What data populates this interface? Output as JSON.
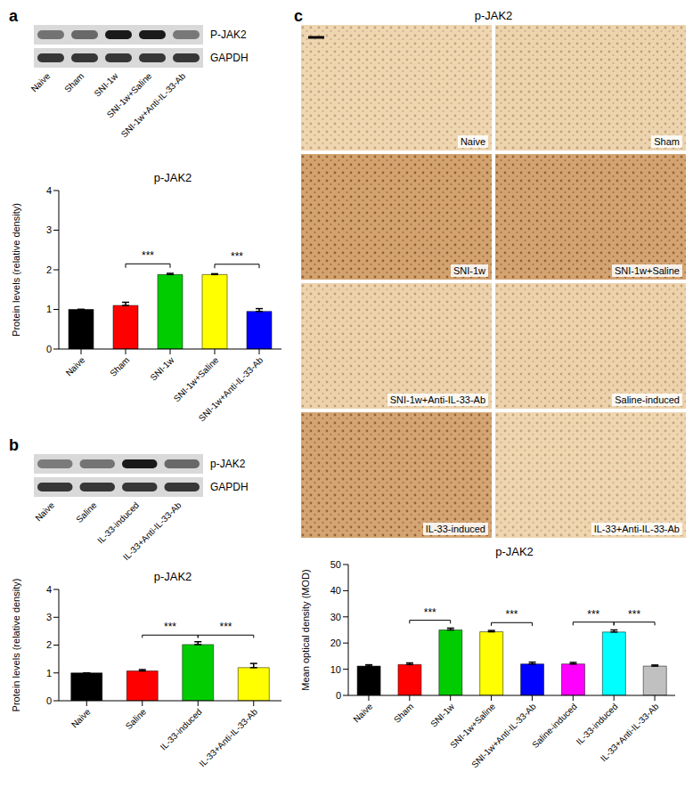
{
  "chart_data": [
    {
      "panel": "a",
      "type": "bar",
      "title": "p-JAK2",
      "blot": {
        "rows": [
          "P-JAK2",
          "GAPDH"
        ]
      },
      "y_label": "Protein levels (relative density)",
      "categories": [
        "Naive",
        "Sham",
        "SNI-1w",
        "SNI-1w+Saline",
        "SNI-1w+Anti-IL-33-Ab"
      ],
      "values": [
        1.0,
        1.1,
        1.88,
        1.88,
        0.95
      ],
      "errors": [
        0,
        0.08,
        0.03,
        0.02,
        0.07
      ],
      "colors": [
        "#000000",
        "#ff0000",
        "#00cc00",
        "#ffff00",
        "#0000ff"
      ],
      "ylim": [
        0,
        4
      ],
      "yticks": [
        0,
        1,
        2,
        3,
        4
      ],
      "grid": false,
      "annotations": [
        {
          "between": [
            "Sham",
            "SNI-1w"
          ],
          "text": "***"
        },
        {
          "between": [
            "SNI-1w+Saline",
            "SNI-1w+Anti-IL-33-Ab"
          ],
          "text": "***"
        }
      ]
    },
    {
      "panel": "b",
      "type": "bar",
      "title": "p-JAK2",
      "blot": {
        "rows": [
          "p-JAK2",
          "GAPDH"
        ]
      },
      "y_label": "Protein levels (relative density)",
      "categories": [
        "Naive",
        "Saline",
        "IL-33-induced",
        "IL-33+Anti-IL-33-Ab"
      ],
      "values": [
        1.0,
        1.07,
        2.02,
        1.19
      ],
      "errors": [
        0,
        0.05,
        0.1,
        0.15
      ],
      "colors": [
        "#000000",
        "#ff0000",
        "#00cc00",
        "#ffff00"
      ],
      "ylim": [
        0,
        4
      ],
      "yticks": [
        0,
        1,
        2,
        3,
        4
      ],
      "grid": false,
      "annotations": [
        {
          "between": [
            "Saline",
            "IL-33-induced"
          ],
          "text": "***"
        },
        {
          "between": [
            "IL-33-induced",
            "IL-33+Anti-IL-33-Ab"
          ],
          "text": "***"
        }
      ]
    },
    {
      "panel": "c",
      "type": "bar",
      "title": "p-JAK2",
      "micrographs": {
        "title": "p-JAK2"
      },
      "y_label": "Mean optical density (MOD)",
      "categories": [
        "Naive",
        "Sham",
        "SNI-1w",
        "SNI-1w+Saline",
        "SNI-1w+Anti-IL-33-Ab",
        "Saline-induced",
        "IL-33-induced",
        "IL-33+Anti-IL-33-Ab"
      ],
      "values": [
        11.2,
        11.8,
        25.0,
        24.3,
        12.0,
        12.0,
        24.2,
        11.2
      ],
      "errors": [
        0.5,
        0.6,
        0.7,
        0.5,
        0.7,
        0.6,
        0.8,
        0.4
      ],
      "colors": [
        "#000000",
        "#ff0000",
        "#00cc00",
        "#ffff00",
        "#0000ff",
        "#ff00ff",
        "#00ffff",
        "#c0c0c0"
      ],
      "ylim": [
        0,
        50
      ],
      "yticks": [
        0,
        10,
        20,
        30,
        40,
        50
      ],
      "grid": false,
      "annotations": [
        {
          "between": [
            "Sham",
            "SNI-1w"
          ],
          "text": "***"
        },
        {
          "between": [
            "SNI-1w+Saline",
            "SNI-1w+Anti-IL-33-Ab"
          ],
          "text": "***"
        },
        {
          "between": [
            "Saline-induced",
            "IL-33-induced"
          ],
          "text": "***"
        },
        {
          "between": [
            "IL-33-induced",
            "IL-33+Anti-IL-33-Ab"
          ],
          "text": "***"
        }
      ]
    }
  ]
}
